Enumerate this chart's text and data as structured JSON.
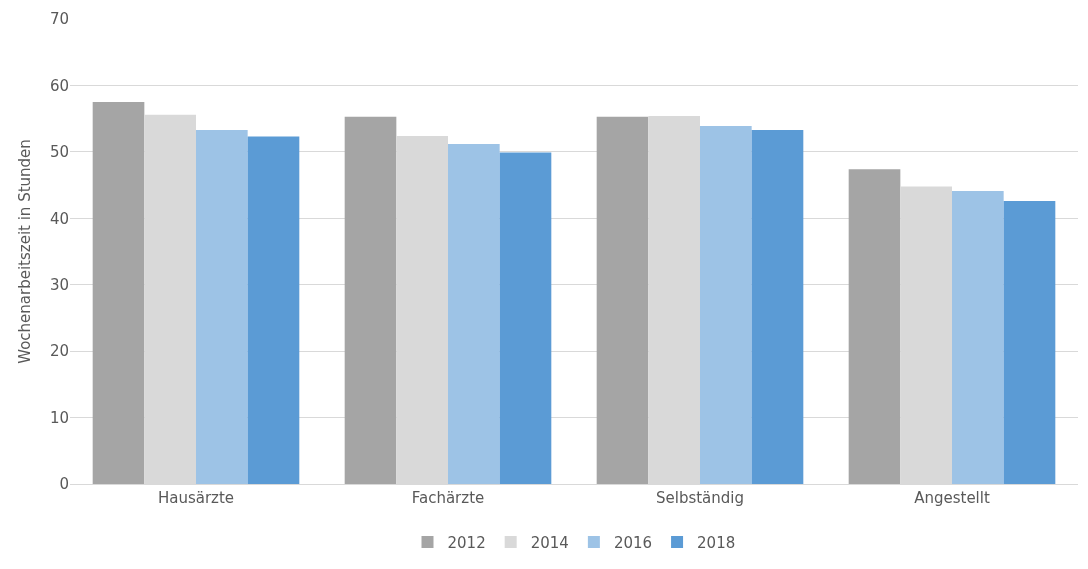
{
  "chart_data": {
    "type": "bar",
    "ylabel": "Wochenarbeitszeit in Stunden",
    "categories": [
      "Hausärzte",
      "Fachärzte",
      "Selbständig",
      "Angestellt"
    ],
    "series": [
      {
        "name": "2012",
        "color": "#a5a5a5",
        "values": [
          57.5,
          55.3,
          55.3,
          47.4
        ]
      },
      {
        "name": "2014",
        "color": "#d9d9d9",
        "values": [
          55.6,
          52.4,
          55.4,
          44.8
        ]
      },
      {
        "name": "2016",
        "color": "#9dc3e6",
        "values": [
          53.3,
          51.2,
          53.9,
          44.1
        ]
      },
      {
        "name": "2018",
        "color": "#5b9bd5",
        "values": [
          52.3,
          49.9,
          53.3,
          42.6
        ]
      }
    ],
    "ylim": [
      0,
      70
    ],
    "yticks": [
      0,
      10,
      20,
      30,
      40,
      50,
      60,
      70
    ],
    "grid": "y",
    "legend": "bottom"
  }
}
